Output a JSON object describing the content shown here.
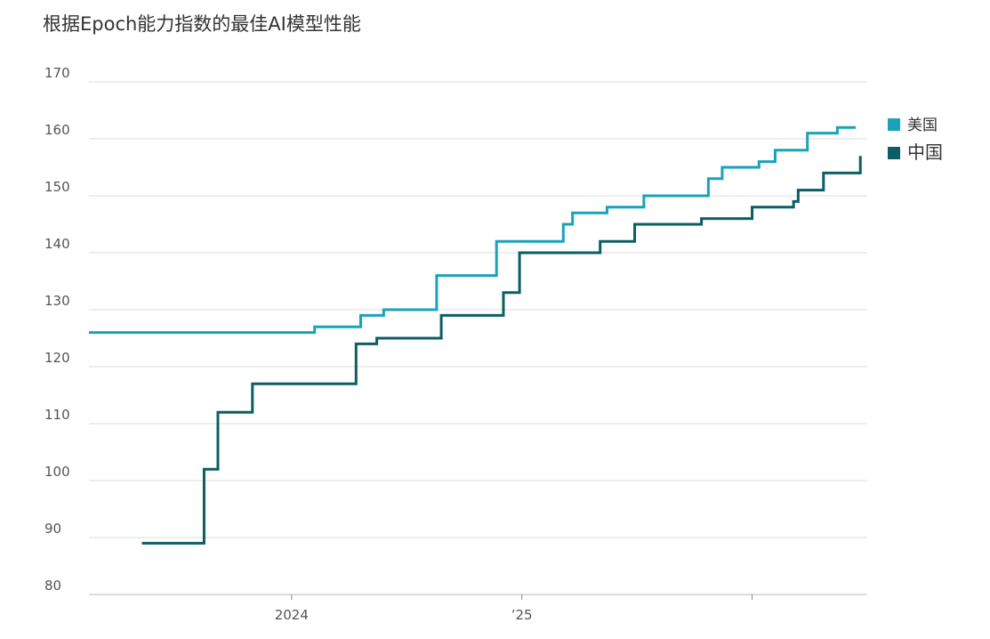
{
  "chart_data": {
    "type": "line",
    "drawstyle": "steps-post",
    "title": "根据Epoch能力指数的最佳AI模型性能",
    "series": [
      {
        "name": "美国",
        "color": "#1aa3b8",
        "x": [
          2023.12,
          2024.1,
          2024.3,
          2024.4,
          2024.63,
          2024.89,
          2025.18,
          2025.22,
          2025.37,
          2025.53,
          2025.81,
          2025.87,
          2026.03,
          2026.1,
          2026.24,
          2026.37,
          2026.45
        ],
        "values": [
          126,
          127,
          129,
          130,
          136,
          142,
          145,
          147,
          148,
          150,
          153,
          155,
          156,
          158,
          161,
          162,
          162
        ]
      },
      {
        "name": "中国",
        "color": "#0b5e64",
        "x": [
          2023.35,
          2023.62,
          2023.68,
          2023.83,
          2024.28,
          2024.37,
          2024.65,
          2024.92,
          2024.99,
          2025.34,
          2025.49,
          2025.78,
          2026.0,
          2026.18,
          2026.2,
          2026.31,
          2026.47
        ],
        "values": [
          89,
          102,
          112,
          117,
          124,
          125,
          129,
          133,
          140,
          142,
          145,
          146,
          148,
          149,
          151,
          154,
          157
        ]
      }
    ],
    "xlim": [
      2023.12,
      2026.5
    ],
    "xticks": [
      2024,
      {
        "value": 2025,
        "label": "’25"
      },
      {
        "value": 2026,
        "label": null
      }
    ],
    "ylim": [
      80,
      170
    ],
    "yticks": [
      80,
      90,
      100,
      110,
      120,
      130,
      140,
      150,
      160,
      170
    ],
    "grid": true,
    "legend": "right"
  }
}
